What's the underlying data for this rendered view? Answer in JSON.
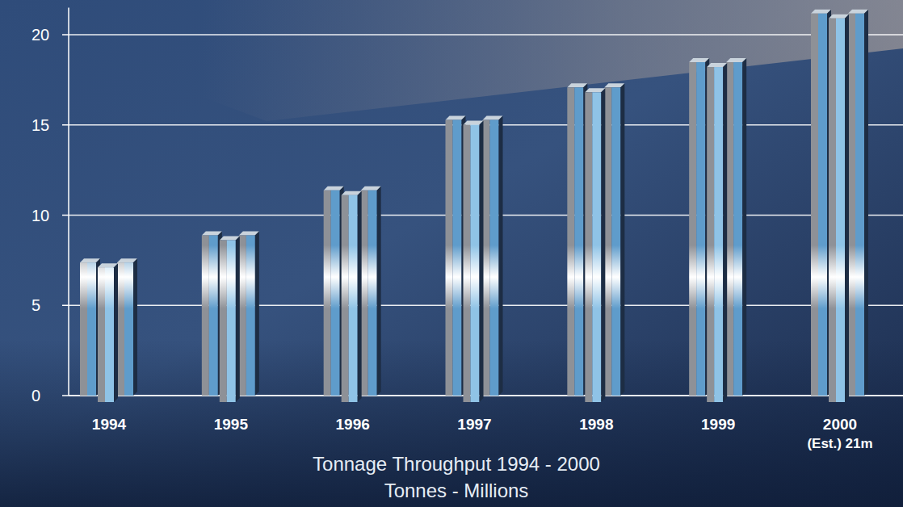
{
  "chart_data": {
    "type": "bar",
    "title": "Tonnage Throughput 1994 - 2000",
    "subtitle": "Tonnes - Millions",
    "annotation": "(Est.) 21m",
    "categories": [
      "1994",
      "1995",
      "1996",
      "1997",
      "1998",
      "1999",
      "2000"
    ],
    "values": [
      7.6,
      9.1,
      11.6,
      15.5,
      17.3,
      18.7,
      21.4
    ],
    "color": "#8fc3e6",
    "ylim": [
      0,
      21.5
    ],
    "yticks": [
      0,
      5,
      10,
      15,
      20
    ],
    "grid": true
  }
}
